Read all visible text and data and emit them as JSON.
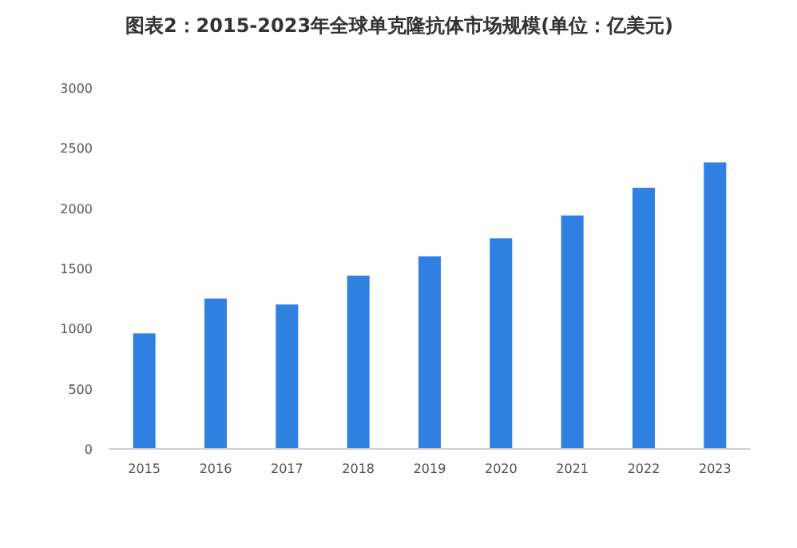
{
  "chart_data": {
    "type": "bar",
    "title": "图表2：2015-2023年全球单克隆抗体市场规模(单位：亿美元)",
    "categories": [
      "2015",
      "2016",
      "2017",
      "2018",
      "2019",
      "2020",
      "2021",
      "2022",
      "2023"
    ],
    "values": [
      960,
      1250,
      1200,
      1440,
      1600,
      1750,
      1940,
      2170,
      2380
    ],
    "color": "#2f80e0",
    "ylim": [
      0,
      3000
    ],
    "yticks": [
      0,
      500,
      1000,
      1500,
      2000,
      2500,
      3000
    ]
  }
}
